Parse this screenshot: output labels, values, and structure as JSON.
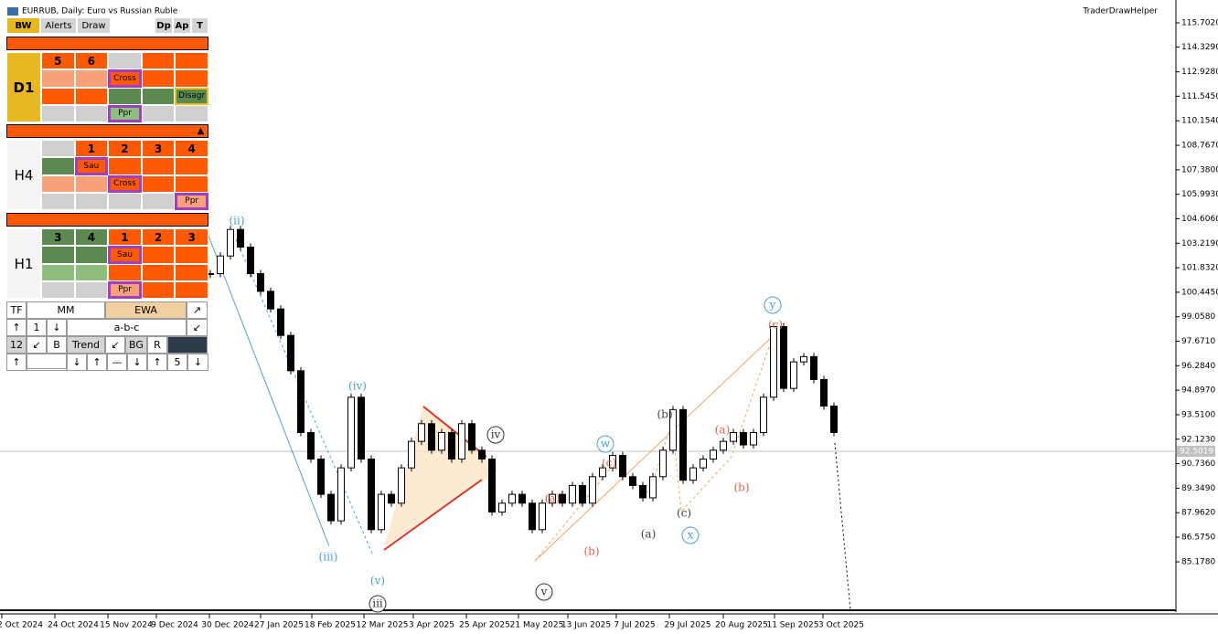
{
  "window": {
    "title": "EURRUB, Daily:  Euro vs Russian Ruble",
    "indicator": "TraderDrawHelper",
    "current_price": "92.5019"
  },
  "price_axis": [
    {
      "value": 115.702,
      "label": "115.7020"
    },
    {
      "value": 114.329,
      "label": "114.3290"
    },
    {
      "value": 112.928,
      "label": "112.9280"
    },
    {
      "value": 111.545,
      "label": "111.5450"
    },
    {
      "value": 110.154,
      "label": "110.1540"
    },
    {
      "value": 108.767,
      "label": "108.7670"
    },
    {
      "value": 107.38,
      "label": "107.3800"
    },
    {
      "value": 105.993,
      "label": "105.9930"
    },
    {
      "value": 104.606,
      "label": "104.6060"
    },
    {
      "value": 103.219,
      "label": "103.2190"
    },
    {
      "value": 101.832,
      "label": "101.8320"
    },
    {
      "value": 100.445,
      "label": "100.4450"
    },
    {
      "value": 99.058,
      "label": "99.0580"
    },
    {
      "value": 97.671,
      "label": "97.6710"
    },
    {
      "value": 96.284,
      "label": "96.2840"
    },
    {
      "value": 94.897,
      "label": "94.8970"
    },
    {
      "value": 93.51,
      "label": "93.5100"
    },
    {
      "value": 92.123,
      "label": "92.1230"
    },
    {
      "value": 90.736,
      "label": "90.7360"
    },
    {
      "value": 89.349,
      "label": "89.3490"
    },
    {
      "value": 87.962,
      "label": "87.9620"
    },
    {
      "value": 86.575,
      "label": "86.5750"
    },
    {
      "value": 85.178,
      "label": "85.1780"
    }
  ],
  "date_axis": [
    "2 Oct 2024",
    "24 Oct 2024",
    "15 Nov 2024",
    "9 Dec 2024",
    "30 Dec 2024",
    "27 Jan 2025",
    "18 Feb 2025",
    "12 Mar 2025",
    "3 Apr 2025",
    "25 Apr 2025",
    "21 May 2025",
    "13 Jun 2025",
    "7 Jul 2025",
    "29 Jul 2025",
    "20 Aug 2025",
    "11 Sep 2025",
    "3 Oct 2025"
  ],
  "closes": [
    101.5,
    102.5,
    104.0,
    103.0,
    101.5,
    100.5,
    99.5,
    98.0,
    96.0,
    92.5,
    91.0,
    89.0,
    87.5,
    90.5,
    94.5,
    91.0,
    87.0,
    89.0,
    88.5,
    90.5,
    92.0,
    93.0,
    91.5,
    92.5,
    91.0,
    93.0,
    91.5,
    91.0,
    88.0,
    88.5,
    89.0,
    88.5,
    87.0,
    88.5,
    89.0,
    88.5,
    89.5,
    88.5,
    90.0,
    90.5,
    91.2,
    90.0,
    89.5,
    88.8,
    90.0,
    91.5,
    93.8,
    89.8,
    90.5,
    91.0,
    91.5,
    92.0,
    92.5,
    91.8,
    92.5,
    94.5,
    98.5,
    95.0,
    96.5,
    96.8,
    95.5,
    94.0,
    92.5
  ],
  "wave_labels": [
    "(ii)",
    "(iii)",
    "(iv)",
    "(v)",
    "iii",
    "iv",
    "v",
    "(a)",
    "(b)",
    "(c)",
    "w",
    "(a)",
    "(b)",
    "(c)",
    "x",
    "(a)",
    "(b)",
    "y",
    "(c)"
  ],
  "panel": {
    "toolbar": [
      "BW",
      "Alerts",
      "Draw",
      "Dp",
      "Ap",
      "T"
    ],
    "sections": [
      {
        "label": "D1",
        "rows": [
          [
            "5",
            "6",
            null,
            null,
            null
          ],
          [
            null,
            null,
            "Cross",
            null,
            null
          ],
          [
            null,
            null,
            null,
            null,
            "Disagr"
          ],
          [
            null,
            null,
            "Ppr",
            null,
            null
          ]
        ]
      },
      {
        "label": "H4",
        "marker": "▲",
        "rows": [
          [
            null,
            "1",
            "2",
            "3",
            "4"
          ],
          [
            null,
            "Sau",
            null,
            null,
            null
          ],
          [
            null,
            null,
            "Cross",
            null,
            null
          ],
          [
            null,
            null,
            null,
            null,
            "Ppr"
          ]
        ]
      },
      {
        "label": "H1",
        "rows": [
          [
            "3",
            "4",
            "1",
            "2",
            "3"
          ],
          [
            null,
            null,
            "Sau",
            null,
            null
          ],
          [
            null,
            null,
            null,
            null,
            null
          ],
          [
            null,
            null,
            "Ppr",
            null,
            null
          ]
        ]
      }
    ],
    "controls": [
      [
        "TF",
        "MM",
        "EWA",
        "↗"
      ],
      [
        "↑",
        "1",
        "↓",
        "a-b-c",
        "↙"
      ],
      [
        "12",
        "↙",
        "B",
        "Trend",
        "↙",
        "BG",
        "R",
        null
      ],
      [
        "↑",
        null,
        "↓",
        "↑",
        "—",
        "↓",
        "↑",
        "5",
        "↓"
      ]
    ]
  }
}
